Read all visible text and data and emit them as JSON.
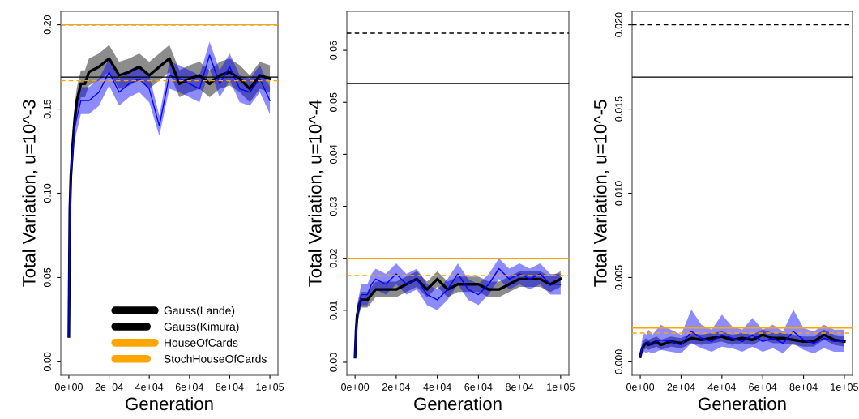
{
  "chart_data": [
    {
      "type": "line",
      "xlabel": "Generation",
      "ylabel": "Total Variation, u=10^-3",
      "xlim": [
        -4000,
        104000
      ],
      "ylim": [
        -0.008,
        0.208
      ],
      "xticks": [
        {
          "value": 0,
          "label": "0e+00"
        },
        {
          "value": 20000,
          "label": "2e+04"
        },
        {
          "value": 40000,
          "label": "4e+04"
        },
        {
          "value": 60000,
          "label": "6e+04"
        },
        {
          "value": 80000,
          "label": "8e+04"
        },
        {
          "value": 100000,
          "label": "1e+05"
        }
      ],
      "yticks": [
        {
          "value": 0,
          "label": "0.00"
        },
        {
          "value": 0.05,
          "label": "0.05"
        },
        {
          "value": 0.1,
          "label": "0.10"
        },
        {
          "value": 0.15,
          "label": "0.15"
        },
        {
          "value": 0.2,
          "label": "0.20"
        }
      ],
      "x": [
        0,
        500,
        1000,
        2000,
        3000,
        4000,
        6000,
        8000,
        10000,
        15000,
        20000,
        25000,
        30000,
        35000,
        40000,
        45000,
        50000,
        55000,
        60000,
        65000,
        70000,
        75000,
        80000,
        85000,
        90000,
        95000,
        100000
      ],
      "series": [
        {
          "color": "#000000",
          "values": [
            0.015,
            0.09,
            0.11,
            0.13,
            0.145,
            0.155,
            0.165,
            0.165,
            0.172,
            0.175,
            0.18,
            0.17,
            0.172,
            0.175,
            0.17,
            0.175,
            0.18,
            0.165,
            0.168,
            0.17,
            0.165,
            0.17,
            0.172,
            0.168,
            0.162,
            0.17,
            0.168
          ],
          "lower": [
            0.015,
            0.085,
            0.104,
            0.122,
            0.137,
            0.147,
            0.157,
            0.157,
            0.164,
            0.167,
            0.172,
            0.162,
            0.164,
            0.167,
            0.162,
            0.167,
            0.172,
            0.157,
            0.16,
            0.162,
            0.157,
            0.162,
            0.164,
            0.16,
            0.154,
            0.162,
            0.16
          ],
          "upper": [
            0.015,
            0.095,
            0.116,
            0.138,
            0.153,
            0.163,
            0.173,
            0.173,
            0.18,
            0.183,
            0.188,
            0.178,
            0.18,
            0.183,
            0.178,
            0.183,
            0.188,
            0.173,
            0.176,
            0.178,
            0.173,
            0.178,
            0.18,
            0.176,
            0.17,
            0.178,
            0.176
          ]
        },
        {
          "color": "#0000ff",
          "values": [
            0.015,
            0.09,
            0.11,
            0.125,
            0.14,
            0.145,
            0.155,
            0.155,
            0.155,
            0.16,
            0.172,
            0.16,
            0.165,
            0.168,
            0.162,
            0.14,
            0.17,
            0.168,
            0.165,
            0.162,
            0.182,
            0.165,
            0.175,
            0.162,
            0.16,
            0.168,
            0.155
          ],
          "lower": [
            0.015,
            0.085,
            0.104,
            0.117,
            0.132,
            0.137,
            0.147,
            0.147,
            0.147,
            0.152,
            0.164,
            0.152,
            0.157,
            0.16,
            0.154,
            0.134,
            0.162,
            0.16,
            0.157,
            0.154,
            0.174,
            0.157,
            0.167,
            0.154,
            0.152,
            0.16,
            0.147
          ],
          "upper": [
            0.015,
            0.095,
            0.116,
            0.133,
            0.148,
            0.153,
            0.163,
            0.163,
            0.163,
            0.168,
            0.18,
            0.168,
            0.173,
            0.176,
            0.17,
            0.146,
            0.178,
            0.176,
            0.173,
            0.17,
            0.19,
            0.173,
            0.183,
            0.17,
            0.168,
            0.176,
            0.163
          ]
        }
      ],
      "ref_lines": [
        {
          "axis": "y",
          "value": 0.169,
          "label": "Gauss(Lande)",
          "color": "#000000",
          "line_style": "solid"
        },
        {
          "axis": "y",
          "value": 0.2,
          "label": "Gauss(Kimura)",
          "color": "#000000",
          "line_style": "dashed"
        },
        {
          "axis": "y",
          "value": 0.2,
          "label": "HouseOfCards",
          "color": "#ffa500",
          "line_style": "solid"
        },
        {
          "axis": "y",
          "value": 0.1668,
          "label": "StochHouseOfCards",
          "color": "#ffa500",
          "line_style": "dashed"
        }
      ],
      "legend": "bottom",
      "grid": false
    },
    {
      "type": "line",
      "xlabel": "Generation",
      "ylabel": "Total Variation, u=10^-4",
      "xlim": [
        -4000,
        104000
      ],
      "ylim": [
        -0.0025,
        0.0675
      ],
      "xticks": [
        {
          "value": 0,
          "label": "0e+00"
        },
        {
          "value": 20000,
          "label": "2e+04"
        },
        {
          "value": 40000,
          "label": "4e+04"
        },
        {
          "value": 60000,
          "label": "6e+04"
        },
        {
          "value": 80000,
          "label": "8e+04"
        },
        {
          "value": 100000,
          "label": "1e+05"
        }
      ],
      "yticks": [
        {
          "value": 0,
          "label": "0.00"
        },
        {
          "value": 0.01,
          "label": "0.01"
        },
        {
          "value": 0.02,
          "label": "0.02"
        },
        {
          "value": 0.03,
          "label": "0.03"
        },
        {
          "value": 0.04,
          "label": "0.04"
        },
        {
          "value": 0.05,
          "label": "0.05"
        },
        {
          "value": 0.06,
          "label": "0.06"
        }
      ],
      "x": [
        0,
        500,
        1000,
        2000,
        3000,
        4000,
        6000,
        8000,
        10000,
        15000,
        20000,
        25000,
        30000,
        35000,
        40000,
        45000,
        50000,
        55000,
        60000,
        65000,
        70000,
        75000,
        80000,
        85000,
        90000,
        95000,
        100000
      ],
      "series": [
        {
          "color": "#000000",
          "values": [
            0.001,
            0.006,
            0.009,
            0.011,
            0.012,
            0.012,
            0.012,
            0.013,
            0.014,
            0.014,
            0.014,
            0.015,
            0.016,
            0.014,
            0.016,
            0.014,
            0.015,
            0.015,
            0.015,
            0.014,
            0.014,
            0.015,
            0.016,
            0.016,
            0.016,
            0.015,
            0.016
          ],
          "lower": [
            0.001,
            0.005,
            0.0075,
            0.0095,
            0.0105,
            0.0105,
            0.0105,
            0.0115,
            0.0125,
            0.0125,
            0.0125,
            0.0135,
            0.0145,
            0.0125,
            0.0145,
            0.0125,
            0.0135,
            0.0135,
            0.0135,
            0.0125,
            0.0125,
            0.0135,
            0.0145,
            0.0145,
            0.0145,
            0.0135,
            0.0145
          ],
          "upper": [
            0.001,
            0.007,
            0.0105,
            0.0125,
            0.0135,
            0.0135,
            0.0135,
            0.0145,
            0.0155,
            0.0155,
            0.0155,
            0.0165,
            0.0175,
            0.0155,
            0.0175,
            0.0155,
            0.0165,
            0.0165,
            0.0165,
            0.0155,
            0.0155,
            0.0165,
            0.0175,
            0.0175,
            0.0175,
            0.0165,
            0.0175
          ]
        },
        {
          "color": "#0000ff",
          "values": [
            0.001,
            0.006,
            0.009,
            0.011,
            0.013,
            0.013,
            0.013,
            0.015,
            0.016,
            0.015,
            0.017,
            0.015,
            0.016,
            0.013,
            0.012,
            0.014,
            0.017,
            0.014,
            0.013,
            0.015,
            0.018,
            0.016,
            0.017,
            0.016,
            0.017,
            0.015,
            0.015
          ],
          "lower": [
            0.001,
            0.005,
            0.007,
            0.009,
            0.011,
            0.011,
            0.011,
            0.013,
            0.014,
            0.013,
            0.015,
            0.013,
            0.014,
            0.011,
            0.01,
            0.012,
            0.015,
            0.012,
            0.011,
            0.013,
            0.016,
            0.014,
            0.015,
            0.014,
            0.015,
            0.013,
            0.013
          ],
          "upper": [
            0.001,
            0.007,
            0.011,
            0.013,
            0.015,
            0.015,
            0.015,
            0.017,
            0.018,
            0.017,
            0.019,
            0.017,
            0.018,
            0.015,
            0.014,
            0.016,
            0.019,
            0.016,
            0.015,
            0.017,
            0.02,
            0.018,
            0.019,
            0.018,
            0.019,
            0.017,
            0.017
          ]
        }
      ],
      "ref_lines": [
        {
          "axis": "y",
          "value": 0.0536,
          "color": "#000000",
          "line_style": "solid"
        },
        {
          "axis": "y",
          "value": 0.0633,
          "color": "#000000",
          "line_style": "dashed"
        },
        {
          "axis": "y",
          "value": 0.02,
          "color": "#ffa500",
          "line_style": "solid"
        },
        {
          "axis": "y",
          "value": 0.0167,
          "color": "#ffa500",
          "line_style": "dashed"
        }
      ],
      "grid": false
    },
    {
      "type": "line",
      "xlabel": "Generation",
      "ylabel": "Total Variation, u=10^-5",
      "xlim": [
        -4000,
        104000
      ],
      "ylim": [
        -0.0008,
        0.0208
      ],
      "xticks": [
        {
          "value": 0,
          "label": "0e+00"
        },
        {
          "value": 20000,
          "label": "2e+04"
        },
        {
          "value": 40000,
          "label": "4e+04"
        },
        {
          "value": 60000,
          "label": "6e+04"
        },
        {
          "value": 80000,
          "label": "8e+04"
        },
        {
          "value": 100000,
          "label": "1e+05"
        }
      ],
      "yticks": [
        {
          "value": 0,
          "label": "0.000"
        },
        {
          "value": 0.005,
          "label": "0.005"
        },
        {
          "value": 0.01,
          "label": "0.010"
        },
        {
          "value": 0.015,
          "label": "0.015"
        },
        {
          "value": 0.02,
          "label": "0.020"
        }
      ],
      "x": [
        0,
        500,
        1000,
        2000,
        3000,
        4000,
        6000,
        8000,
        10000,
        15000,
        20000,
        25000,
        30000,
        35000,
        40000,
        45000,
        50000,
        55000,
        60000,
        65000,
        70000,
        75000,
        80000,
        85000,
        90000,
        95000,
        100000
      ],
      "series": [
        {
          "color": "#000000",
          "values": [
            0.0003,
            0.0006,
            0.0008,
            0.001,
            0.0011,
            0.001,
            0.0011,
            0.0012,
            0.001,
            0.0012,
            0.0011,
            0.0014,
            0.0013,
            0.0014,
            0.0015,
            0.0013,
            0.0014,
            0.0013,
            0.0016,
            0.0014,
            0.0014,
            0.0013,
            0.0012,
            0.0012,
            0.0016,
            0.0013,
            0.0012
          ],
          "lower": [
            0.0002,
            0.0004,
            0.0005,
            0.0007,
            0.0008,
            0.0007,
            0.0008,
            0.0009,
            0.0007,
            0.0009,
            0.0008,
            0.0011,
            0.001,
            0.0011,
            0.0012,
            0.001,
            0.0011,
            0.001,
            0.0013,
            0.0011,
            0.0011,
            0.001,
            0.0009,
            0.0009,
            0.0013,
            0.001,
            0.0009
          ],
          "upper": [
            0.0004,
            0.0008,
            0.0011,
            0.0013,
            0.0014,
            0.0013,
            0.0014,
            0.0015,
            0.0013,
            0.0015,
            0.0014,
            0.0017,
            0.0016,
            0.0017,
            0.0018,
            0.0016,
            0.0017,
            0.0016,
            0.0019,
            0.0017,
            0.0017,
            0.0016,
            0.0015,
            0.0015,
            0.0019,
            0.0016,
            0.0015
          ]
        },
        {
          "color": "#0000ff",
          "values": [
            0.0003,
            0.0007,
            0.0009,
            0.0011,
            0.001,
            0.0012,
            0.001,
            0.0012,
            0.0013,
            0.0012,
            0.001,
            0.0018,
            0.0014,
            0.0012,
            0.0016,
            0.0014,
            0.0012,
            0.0016,
            0.0012,
            0.0014,
            0.0011,
            0.0018,
            0.0013,
            0.0011,
            0.0014,
            0.0012,
            0.0012
          ],
          "lower": [
            0.0002,
            0.0004,
            0.0005,
            0.0006,
            0.0005,
            0.0006,
            0.0005,
            0.0006,
            0.0007,
            0.0006,
            0.0005,
            0.0011,
            0.0008,
            0.0006,
            0.0009,
            0.0008,
            0.0006,
            0.0009,
            0.0006,
            0.0008,
            0.0005,
            0.0011,
            0.0007,
            0.0005,
            0.0008,
            0.0006,
            0.0006
          ],
          "upper": [
            0.0004,
            0.001,
            0.0014,
            0.0017,
            0.0016,
            0.0019,
            0.0016,
            0.0019,
            0.0022,
            0.0019,
            0.0016,
            0.0031,
            0.0022,
            0.0019,
            0.0028,
            0.0021,
            0.0019,
            0.0026,
            0.0019,
            0.0022,
            0.0018,
            0.0031,
            0.002,
            0.0018,
            0.0022,
            0.0019,
            0.0019
          ]
        }
      ],
      "ref_lines": [
        {
          "axis": "y",
          "value": 0.0169,
          "color": "#000000",
          "line_style": "solid"
        },
        {
          "axis": "y",
          "value": 0.02,
          "color": "#000000",
          "line_style": "dashed"
        },
        {
          "axis": "y",
          "value": 0.002,
          "color": "#ffa500",
          "line_style": "solid"
        },
        {
          "axis": "y",
          "value": 0.0017,
          "color": "#ffa500",
          "line_style": "dashed"
        }
      ],
      "grid": false
    }
  ]
}
